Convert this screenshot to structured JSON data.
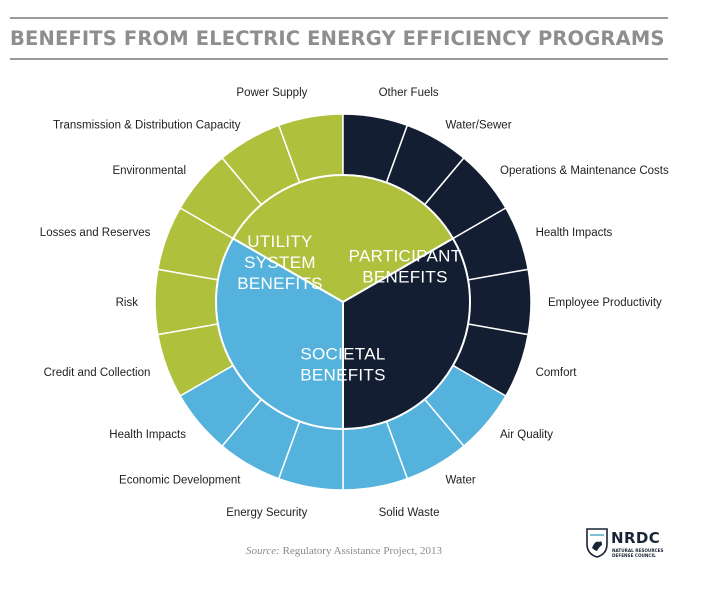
{
  "title": "BENEFITS FROM ELECTRIC ENERGY EFFICIENCY PROGRAMS",
  "colors": {
    "utility": "#afc03d",
    "participant": "#141e32",
    "societal": "#55b2dc",
    "title": "#8e8e8e"
  },
  "groups": [
    {
      "id": "utility",
      "center_lines": [
        "UTILITY",
        "SYSTEM",
        "BENEFITS"
      ],
      "color": "#afc03d",
      "benefits": [
        "Power Supply",
        "Transmission & Distribution Capacity",
        "Environmental",
        "Losses and Reserves",
        "Risk",
        "Credit and Collection"
      ]
    },
    {
      "id": "participant",
      "center_lines": [
        "PARTICIPANT",
        "BENEFITS"
      ],
      "color": "#141e32",
      "benefits": [
        "Other Fuels",
        "Water/Sewer",
        "Operations & Maintenance Costs",
        "Health Impacts",
        "Employee Productivity",
        "Comfort"
      ]
    },
    {
      "id": "societal",
      "center_lines": [
        "SOCIETAL",
        "BENEFITS"
      ],
      "color": "#55b2dc",
      "benefits": [
        "Air Quality",
        "Water",
        "Solid Waste",
        "Energy Security",
        "Economic Development",
        "Health Impacts"
      ]
    }
  ],
  "source": {
    "key": "Source:",
    "text": "Regulatory Assistance Project, 2013"
  },
  "logo": {
    "name": "NRDC",
    "line1": "NATURAL RESOURCES",
    "line2": "DEFENSE COUNCIL"
  }
}
